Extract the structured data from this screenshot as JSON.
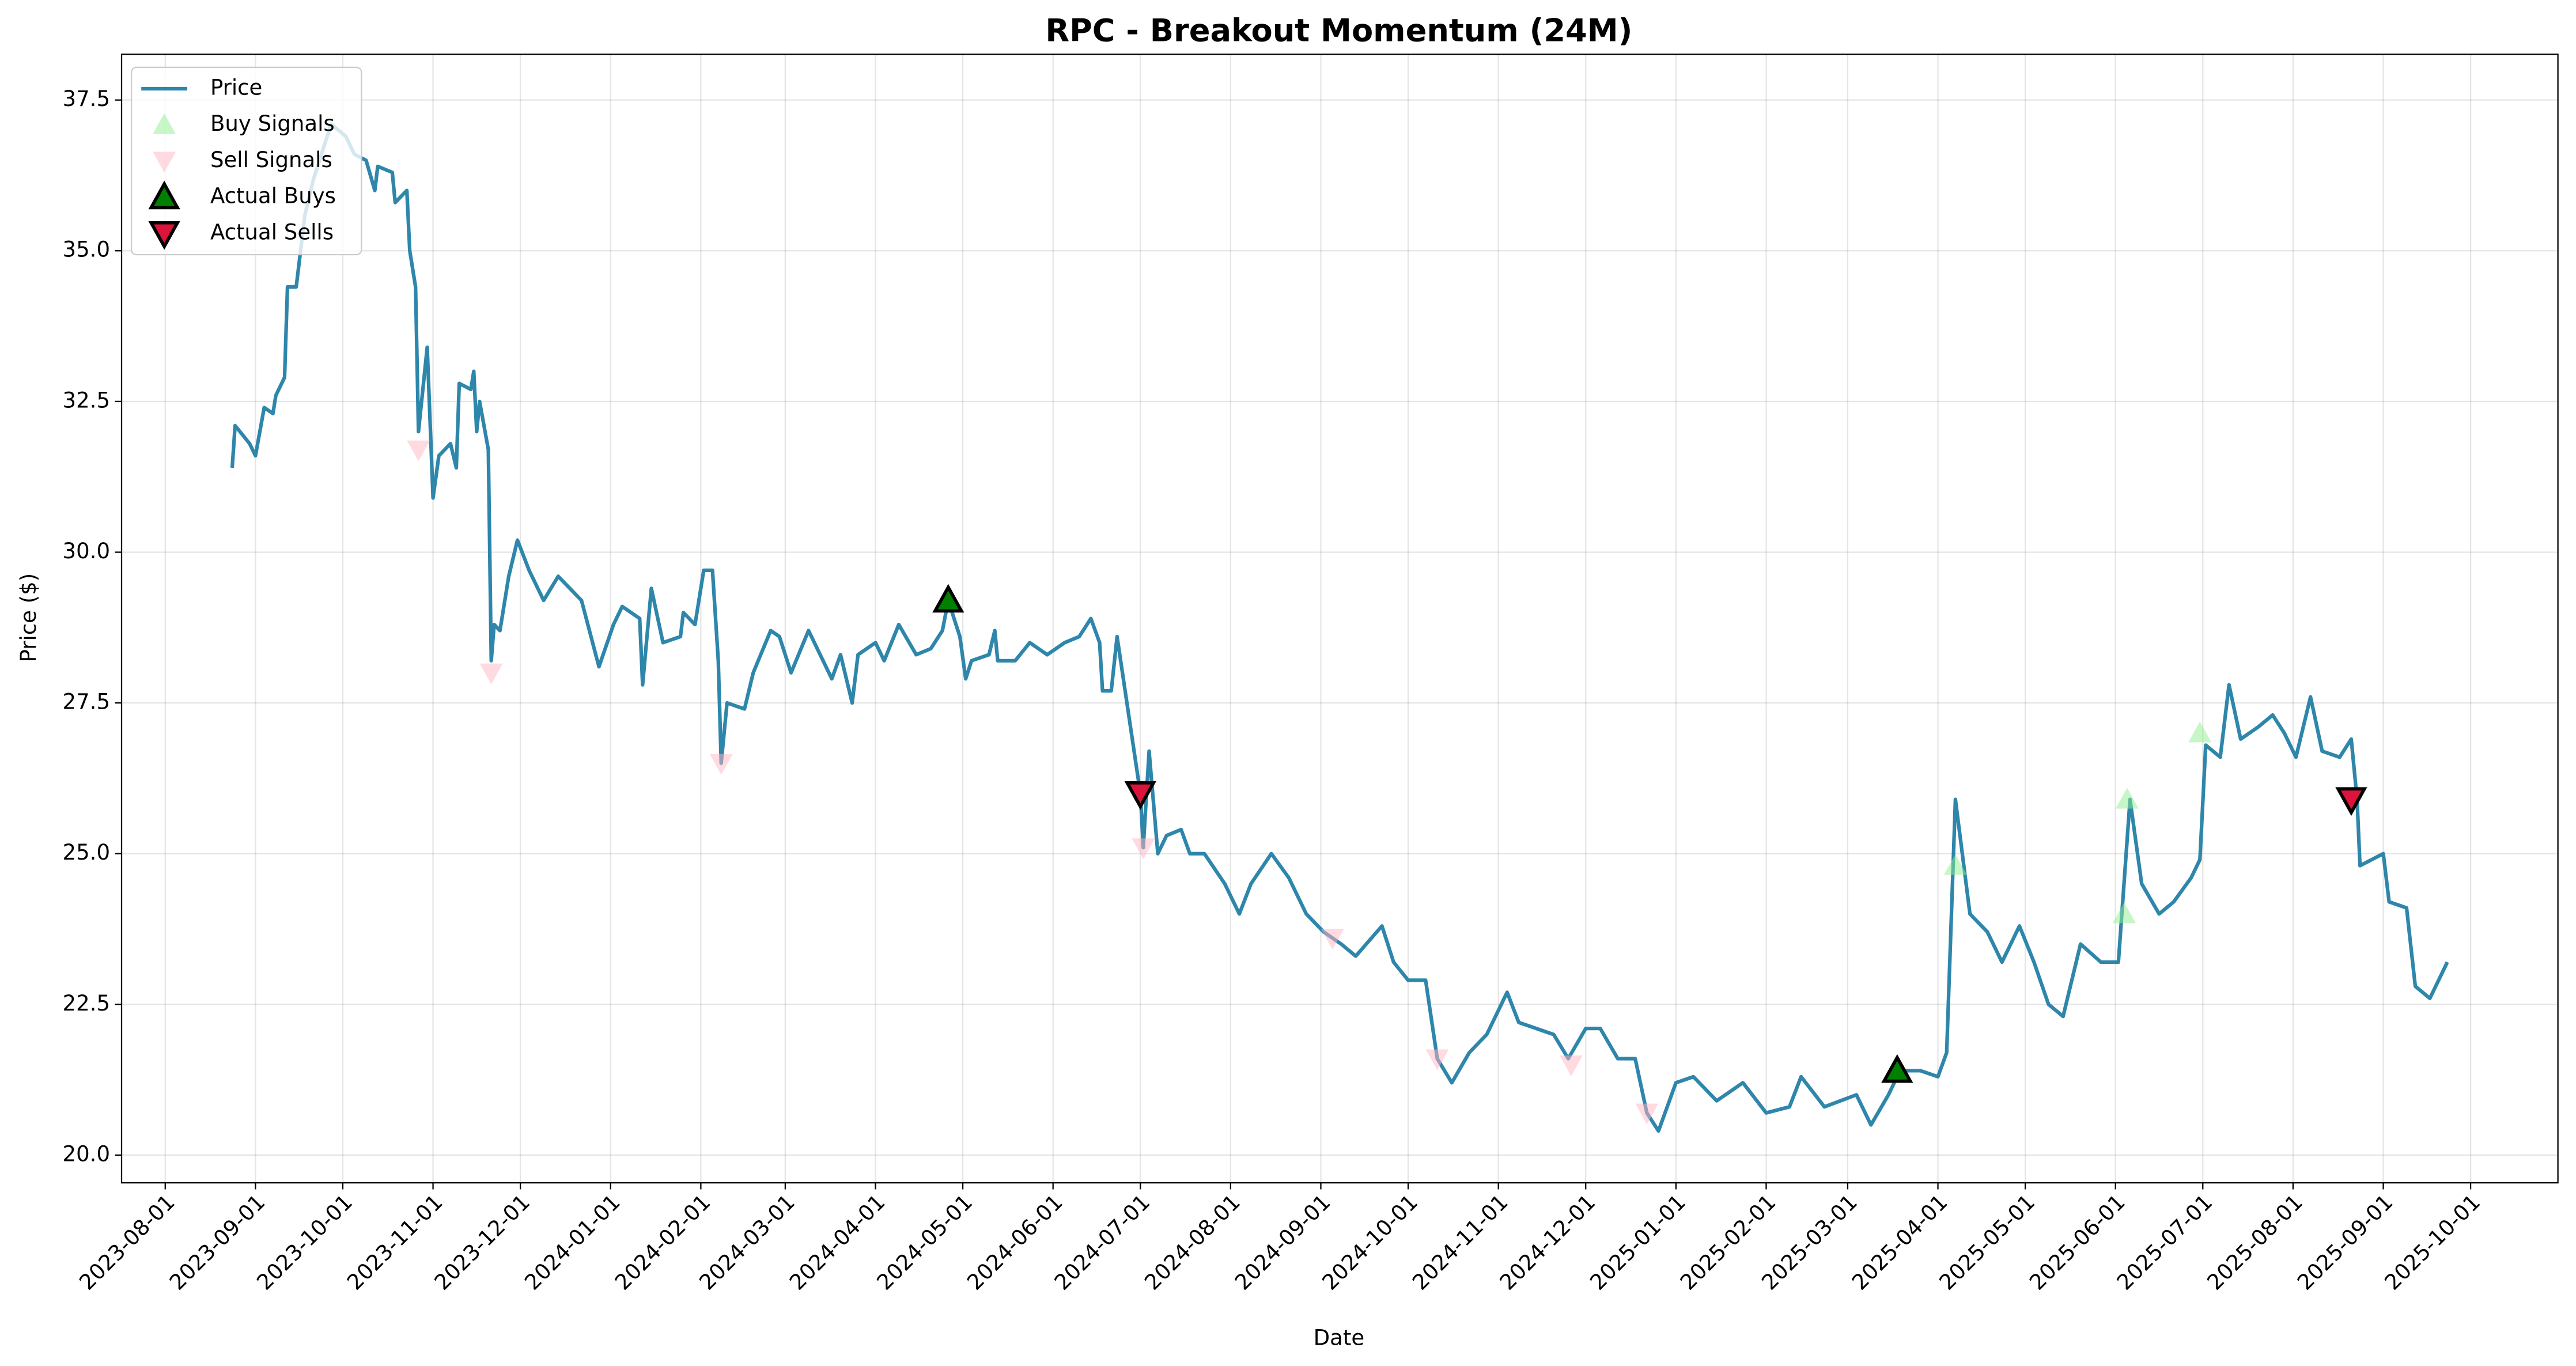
{
  "chart_data": {
    "type": "line",
    "title": "RPC - Breakout Momentum (24M)",
    "x_label": "Date",
    "y_label": "Price ($)",
    "grid": true,
    "legend": "upper left",
    "xlim": [
      "2023-07-17",
      "2025-10-31"
    ],
    "ylim": [
      19.54,
      38.26
    ],
    "xticks": [
      "2023-08-01",
      "2023-09-01",
      "2023-10-01",
      "2023-11-01",
      "2023-12-01",
      "2024-01-01",
      "2024-02-01",
      "2024-03-01",
      "2024-04-01",
      "2024-05-01",
      "2024-06-01",
      "2024-07-01",
      "2024-08-01",
      "2024-09-01",
      "2024-10-01",
      "2024-11-01",
      "2024-12-01",
      "2025-01-01",
      "2025-02-01",
      "2025-03-01",
      "2025-04-01",
      "2025-05-01",
      "2025-06-01",
      "2025-07-01",
      "2025-08-01",
      "2025-09-01",
      "2025-10-01"
    ],
    "yticks": [
      {
        "value": 20,
        "label": "20.0"
      },
      22.5,
      {
        "value": 25,
        "label": "25.0"
      },
      27.5,
      {
        "value": 30,
        "label": "30.0"
      },
      32.5,
      {
        "value": 35,
        "label": "35.0"
      },
      37.5
    ],
    "series": [
      {
        "name": "Price",
        "color": "#2e86ab",
        "marker": "line",
        "x": [
          "2023-08-24",
          "2023-08-25",
          "2023-08-30",
          "2023-09-01",
          "2023-09-04",
          "2023-09-07",
          "2023-09-08",
          "2023-09-11",
          "2023-09-12",
          "2023-09-15",
          "2023-09-18",
          "2023-09-21",
          "2023-09-25",
          "2023-09-27",
          "2023-10-02",
          "2023-10-05",
          "2023-10-09",
          "2023-10-12",
          "2023-10-13",
          "2023-10-18",
          "2023-10-19",
          "2023-10-23",
          "2023-10-24",
          "2023-10-26",
          "2023-10-27",
          "2023-10-30",
          "2023-11-01",
          "2023-11-03",
          "2023-11-07",
          "2023-11-09",
          "2023-11-10",
          "2023-11-14",
          "2023-11-15",
          "2023-11-16",
          "2023-11-17",
          "2023-11-20",
          "2023-11-21",
          "2023-11-22",
          "2023-11-24",
          "2023-11-27",
          "2023-11-30",
          "2023-12-04",
          "2023-12-09",
          "2023-12-14",
          "2023-12-22",
          "2023-12-28",
          "2024-01-02",
          "2024-01-05",
          "2024-01-11",
          "2024-01-12",
          "2024-01-15",
          "2024-01-19",
          "2024-01-25",
          "2024-01-26",
          "2024-01-30",
          "2024-02-02",
          "2024-02-05",
          "2024-02-07",
          "2024-02-08",
          "2024-02-10",
          "2024-02-16",
          "2024-02-19",
          "2024-02-25",
          "2024-02-28",
          "2024-03-03",
          "2024-03-09",
          "2024-03-17",
          "2024-03-20",
          "2024-03-24",
          "2024-03-26",
          "2024-04-01",
          "2024-04-04",
          "2024-04-09",
          "2024-04-15",
          "2024-04-20",
          "2024-04-24",
          "2024-04-26",
          "2024-04-30",
          "2024-05-02",
          "2024-05-04",
          "2024-05-10",
          "2024-05-12",
          "2024-05-13",
          "2024-05-19",
          "2024-05-24",
          "2024-05-30",
          "2024-06-05",
          "2024-06-10",
          "2024-06-14",
          "2024-06-17",
          "2024-06-18",
          "2024-06-21",
          "2024-06-23",
          "2024-06-27",
          "2024-07-01",
          "2024-07-02",
          "2024-07-04",
          "2024-07-07",
          "2024-07-10",
          "2024-07-15",
          "2024-07-18",
          "2024-07-23",
          "2024-07-30",
          "2024-08-04",
          "2024-08-08",
          "2024-08-15",
          "2024-08-21",
          "2024-08-27",
          "2024-09-02",
          "2024-09-08",
          "2024-09-13",
          "2024-09-22",
          "2024-09-26",
          "2024-10-01",
          "2024-10-07",
          "2024-10-11",
          "2024-10-16",
          "2024-10-22",
          "2024-10-28",
          "2024-11-04",
          "2024-11-08",
          "2024-11-14",
          "2024-11-20",
          "2024-11-25",
          "2024-12-01",
          "2024-12-06",
          "2024-12-12",
          "2024-12-18",
          "2024-12-22",
          "2024-12-26",
          "2025-01-01",
          "2025-01-07",
          "2025-01-15",
          "2025-01-24",
          "2025-02-01",
          "2025-02-09",
          "2025-02-13",
          "2025-02-21",
          "2025-03-04",
          "2025-03-09",
          "2025-03-15",
          "2025-03-19",
          "2025-03-26",
          "2025-04-01",
          "2025-04-04",
          "2025-04-07",
          "2025-04-12",
          "2025-04-18",
          "2025-04-23",
          "2025-04-29",
          "2025-05-04",
          "2025-05-09",
          "2025-05-14",
          "2025-05-20",
          "2025-05-27",
          "2025-06-02",
          "2025-06-06",
          "2025-06-10",
          "2025-06-16",
          "2025-06-21",
          "2025-06-27",
          "2025-06-30",
          "2025-07-02",
          "2025-07-07",
          "2025-07-10",
          "2025-07-14",
          "2025-07-20",
          "2025-07-25",
          "2025-07-29",
          "2025-08-02",
          "2025-08-07",
          "2025-08-11",
          "2025-08-17",
          "2025-08-21",
          "2025-08-23",
          "2025-08-24",
          "2025-09-01",
          "2025-09-03",
          "2025-09-09",
          "2025-09-12",
          "2025-09-17",
          "2025-09-21",
          "2025-09-23"
        ],
        "values": [
          31.4,
          32.1,
          31.8,
          31.6,
          32.4,
          32.3,
          32.6,
          32.9,
          34.4,
          34.4,
          35.6,
          36.2,
          36.8,
          37.1,
          36.9,
          36.6,
          36.5,
          36.0,
          36.4,
          36.3,
          35.8,
          36.0,
          35.0,
          34.4,
          32.0,
          33.4,
          30.9,
          31.6,
          31.8,
          31.4,
          32.8,
          32.7,
          33.0,
          32.0,
          32.5,
          31.7,
          28.2,
          28.8,
          28.7,
          29.6,
          30.2,
          29.7,
          29.2,
          29.6,
          29.2,
          28.1,
          28.8,
          29.1,
          28.9,
          27.8,
          29.4,
          28.5,
          28.6,
          29.0,
          28.8,
          29.7,
          29.7,
          28.2,
          26.5,
          27.5,
          27.4,
          28.0,
          28.7,
          28.6,
          28.0,
          28.7,
          27.9,
          28.3,
          27.5,
          28.3,
          28.5,
          28.2,
          28.8,
          28.3,
          28.4,
          28.7,
          29.2,
          28.6,
          27.9,
          28.2,
          28.3,
          28.7,
          28.2,
          28.2,
          28.5,
          28.3,
          28.5,
          28.6,
          28.9,
          28.5,
          27.7,
          27.7,
          28.6,
          27.3,
          26.0,
          25.1,
          26.7,
          25.0,
          25.3,
          25.4,
          25.0,
          25.0,
          24.5,
          24.0,
          24.5,
          25.0,
          24.6,
          24.0,
          23.7,
          23.5,
          23.3,
          23.8,
          23.2,
          22.9,
          22.9,
          21.6,
          21.2,
          21.7,
          22.0,
          22.7,
          22.2,
          22.1,
          22.0,
          21.6,
          22.1,
          22.1,
          21.6,
          21.6,
          20.7,
          20.4,
          21.2,
          21.3,
          20.9,
          21.2,
          20.7,
          20.8,
          21.3,
          20.8,
          21.0,
          20.5,
          21.0,
          21.4,
          21.4,
          21.3,
          21.7,
          25.9,
          24.0,
          23.7,
          23.2,
          23.8,
          23.2,
          22.5,
          22.3,
          23.5,
          23.2,
          23.2,
          25.9,
          24.5,
          24.0,
          24.2,
          24.6,
          24.9,
          26.8,
          26.6,
          27.8,
          26.9,
          27.1,
          27.3,
          27.0,
          26.6,
          27.6,
          26.7,
          26.6,
          26.9,
          25.9,
          24.8,
          25.0,
          24.2,
          24.1,
          22.8,
          22.6,
          23.0,
          23.2
        ]
      },
      {
        "name": "Buy Signals",
        "color": "#90ee90",
        "alpha": 0.5,
        "marker": "triangle-up",
        "x": [
          "2025-04-07",
          "2025-06-04",
          "2025-06-05",
          "2025-06-30"
        ],
        "values": [
          24.8,
          24.0,
          25.9,
          27.0
        ]
      },
      {
        "name": "Sell Signals",
        "color": "#ffb6c1",
        "alpha": 0.5,
        "marker": "triangle-down",
        "x": [
          "2023-10-27",
          "2023-11-21",
          "2024-02-08",
          "2024-07-02",
          "2024-09-05",
          "2024-10-11",
          "2024-11-26",
          "2024-12-22"
        ],
        "values": [
          31.7,
          28.0,
          26.5,
          25.1,
          23.6,
          21.6,
          21.5,
          20.7
        ]
      },
      {
        "name": "Actual Buys",
        "color": "#008000",
        "edgecolor": "#000000",
        "marker": "triangle-up",
        "x": [
          "2024-04-26",
          "2025-03-18"
        ],
        "values": [
          29.2,
          21.4
        ]
      },
      {
        "name": "Actual Sells",
        "color": "#dc143c",
        "edgecolor": "#000000",
        "marker": "triangle-down",
        "x": [
          "2024-07-01",
          "2025-08-21"
        ],
        "values": [
          26.0,
          25.9
        ]
      }
    ]
  }
}
